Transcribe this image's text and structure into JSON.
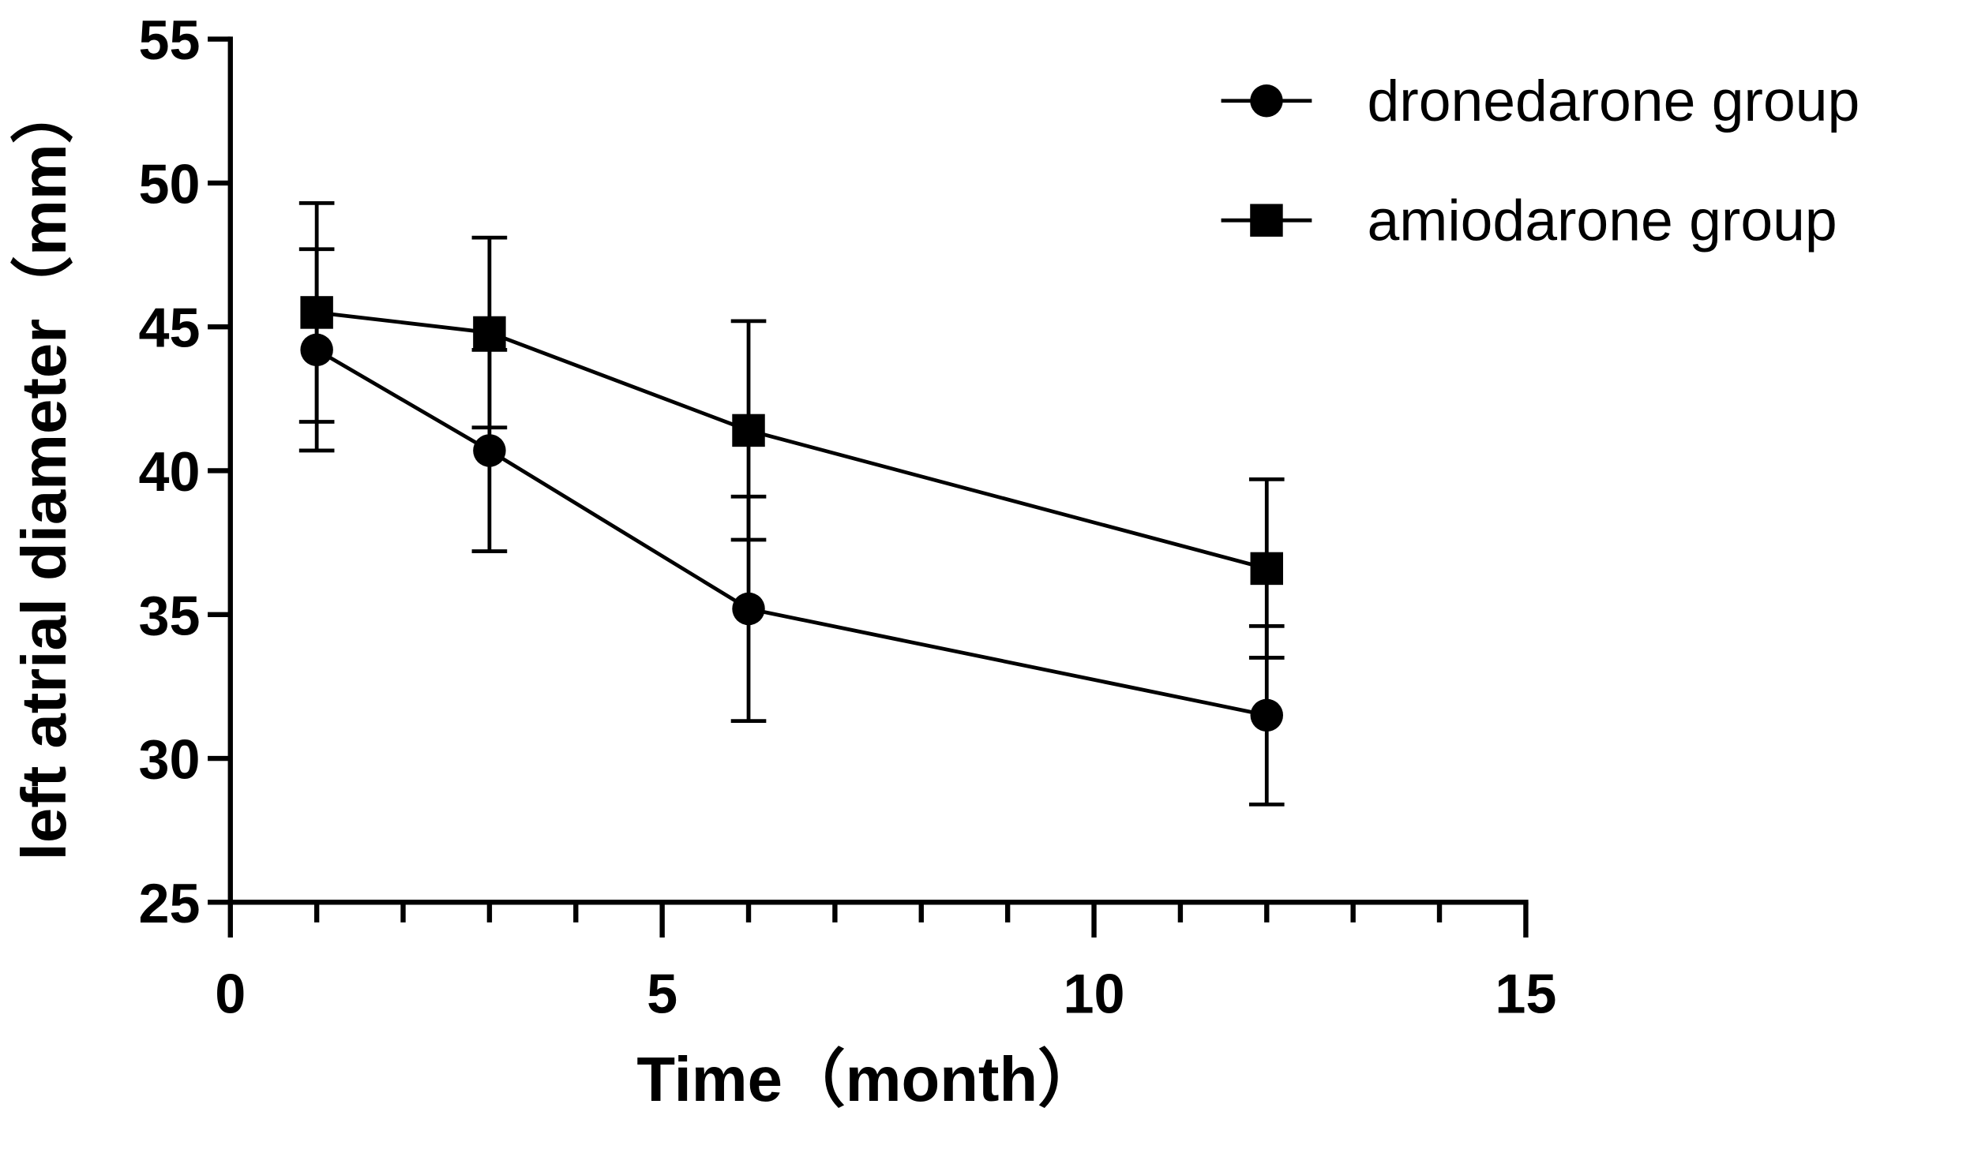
{
  "chart_data": {
    "type": "line",
    "x_label": "Time（month）",
    "y_label": "left atrial diameter（mm）",
    "x": [
      1,
      3,
      6,
      12
    ],
    "series": [
      {
        "name": "dronedarone group",
        "color": "#000000",
        "marker": "circle",
        "values": [
          44.2,
          40.7,
          35.2,
          31.5
        ],
        "errors": [
          3.5,
          3.5,
          3.9,
          3.1
        ]
      },
      {
        "name": "amiodarone group",
        "color": "#000000",
        "marker": "square",
        "values": [
          45.5,
          44.8,
          41.4,
          36.6
        ],
        "errors": [
          3.8,
          3.3,
          3.8,
          3.1
        ]
      }
    ],
    "xlim": [
      0,
      15
    ],
    "xticks": [
      0,
      5,
      10,
      15
    ],
    "xminorticks": [
      1,
      2,
      3,
      4,
      6,
      7,
      8,
      9,
      11,
      12,
      13,
      14
    ],
    "ylim": [
      25,
      55
    ],
    "yticks": [
      25,
      30,
      35,
      40,
      45,
      50,
      55
    ],
    "legend": "top-right"
  }
}
